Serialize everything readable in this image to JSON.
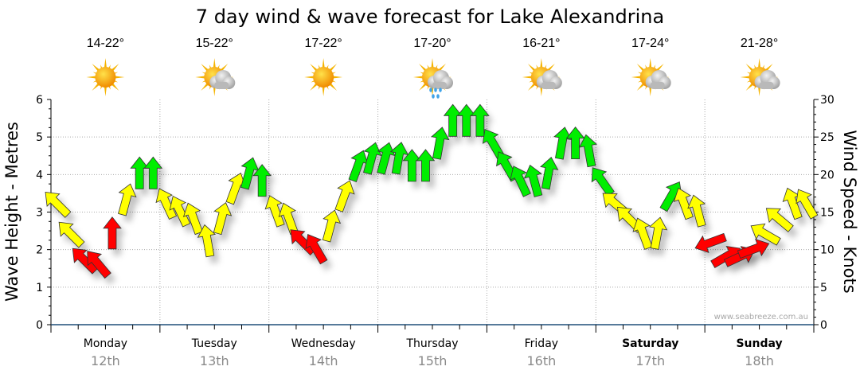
{
  "chart_data": {
    "type": "line",
    "title": "7 day wind & wave forecast for Lake Alexandrina",
    "ylabel_left": "Wave Height - Metres",
    "ylabel_right": "Wind Speed - Knots",
    "ylim_left": [
      0,
      6
    ],
    "ylim_right": [
      0,
      30
    ],
    "yticks_left": [
      "0",
      "1",
      "2",
      "3",
      "4",
      "5",
      "6"
    ],
    "yticks_right": [
      "0",
      "5",
      "10",
      "15",
      "20",
      "25",
      "30"
    ],
    "grid": true,
    "watermark": "www.seabreeze.com.au",
    "days": [
      {
        "name": "Monday",
        "date": "12th",
        "bold": false,
        "temp": "14-22°",
        "weather": "sunny"
      },
      {
        "name": "Tuesday",
        "date": "13th",
        "bold": false,
        "temp": "15-22°",
        "weather": "partly-cloudy"
      },
      {
        "name": "Wednesday",
        "date": "14th",
        "bold": false,
        "temp": "17-22°",
        "weather": "sunny"
      },
      {
        "name": "Thursday",
        "date": "15th",
        "bold": false,
        "temp": "17-20°",
        "weather": "showers"
      },
      {
        "name": "Friday",
        "date": "16th",
        "bold": false,
        "temp": "16-21°",
        "weather": "partly-cloudy"
      },
      {
        "name": "Saturday",
        "date": "17th",
        "bold": true,
        "temp": "17-24°",
        "weather": "partly-cloudy"
      },
      {
        "name": "Sunday",
        "date": "18th",
        "bold": true,
        "temp": "21-28°",
        "weather": "partly-cloudy"
      }
    ],
    "colors": {
      "low": "#ff0000",
      "mid": "#ffff00",
      "high": "#00ee00"
    },
    "wind_series_note": "3-hourly wind speed (knots), arrow direction (degrees, 0=pointing up), colour class",
    "wind": [
      [
        16,
        -45,
        "mid"
      ],
      [
        12,
        -45,
        "mid"
      ],
      [
        8.5,
        -45,
        "low"
      ],
      [
        8,
        -40,
        "low"
      ],
      [
        12,
        0,
        "low"
      ],
      [
        16.5,
        15,
        "mid"
      ],
      [
        20,
        0,
        "high"
      ],
      [
        20,
        0,
        "high"
      ],
      [
        16,
        -25,
        "mid"
      ],
      [
        15,
        -25,
        "mid"
      ],
      [
        14,
        -20,
        "mid"
      ],
      [
        11,
        -10,
        "mid"
      ],
      [
        14,
        15,
        "mid"
      ],
      [
        18,
        20,
        "mid"
      ],
      [
        20,
        15,
        "high"
      ],
      [
        19,
        0,
        "high"
      ],
      [
        15,
        -20,
        "mid"
      ],
      [
        14,
        -20,
        "mid"
      ],
      [
        11,
        -45,
        "low"
      ],
      [
        10,
        -30,
        "low"
      ],
      [
        13,
        15,
        "mid"
      ],
      [
        17,
        20,
        "mid"
      ],
      [
        21,
        20,
        "high"
      ],
      [
        22,
        15,
        "high"
      ],
      [
        22,
        15,
        "high"
      ],
      [
        22,
        10,
        "high"
      ],
      [
        21,
        0,
        "high"
      ],
      [
        21,
        0,
        "high"
      ],
      [
        24,
        10,
        "high"
      ],
      [
        27,
        0,
        "high"
      ],
      [
        27,
        0,
        "high"
      ],
      [
        27,
        0,
        "high"
      ],
      [
        24,
        -30,
        "high"
      ],
      [
        21,
        -30,
        "high"
      ],
      [
        19,
        -25,
        "high"
      ],
      [
        19,
        -15,
        "high"
      ],
      [
        20,
        10,
        "high"
      ],
      [
        24,
        10,
        "high"
      ],
      [
        24,
        0,
        "high"
      ],
      [
        23,
        -10,
        "high"
      ],
      [
        19,
        -35,
        "high"
      ],
      [
        16,
        -50,
        "mid"
      ],
      [
        14,
        -45,
        "mid"
      ],
      [
        12,
        -20,
        "mid"
      ],
      [
        12,
        10,
        "mid"
      ],
      [
        17,
        30,
        "high"
      ],
      [
        16,
        -20,
        "mid"
      ],
      [
        15,
        -15,
        "mid"
      ],
      [
        11,
        -110,
        "low"
      ],
      [
        9,
        60,
        "low"
      ],
      [
        9,
        65,
        "low"
      ],
      [
        10,
        70,
        "low"
      ],
      [
        12,
        -60,
        "mid"
      ],
      [
        14,
        -50,
        "mid"
      ],
      [
        16,
        -20,
        "mid"
      ],
      [
        16,
        -30,
        "mid"
      ]
    ]
  }
}
